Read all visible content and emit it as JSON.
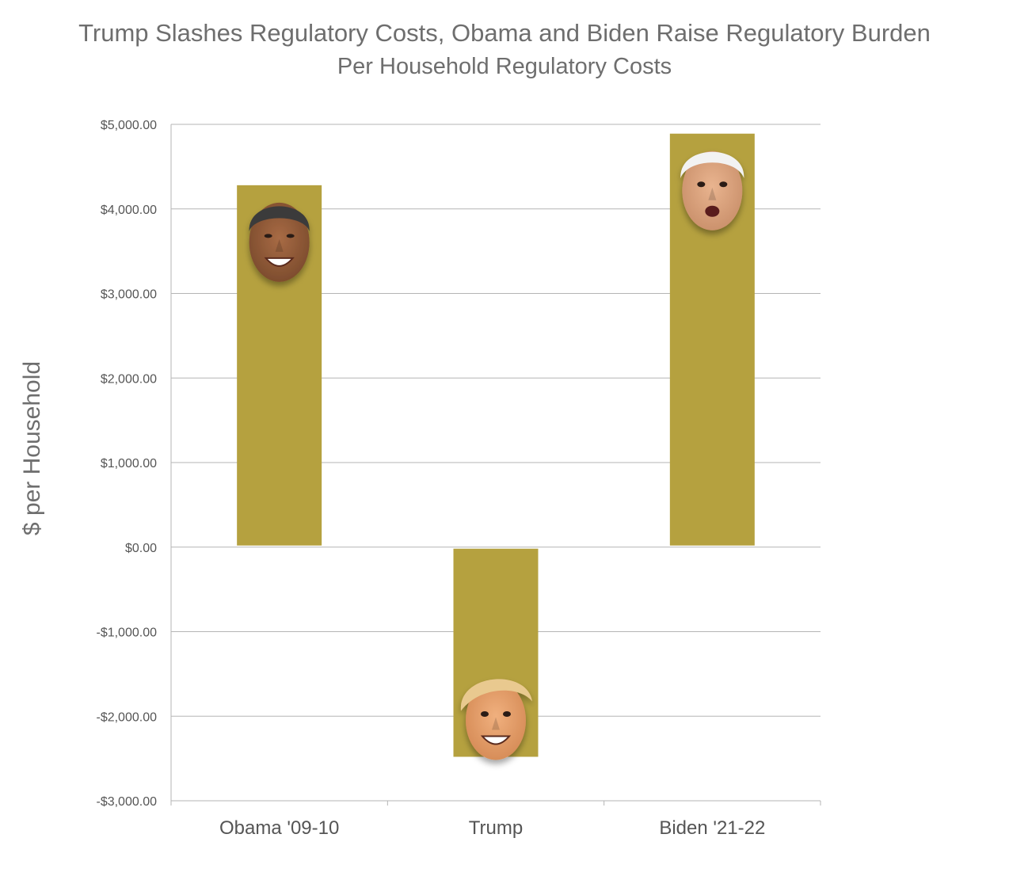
{
  "chart_data": {
    "type": "bar",
    "title": "Trump Slashes Regulatory Costs, Obama and Biden Raise Regulatory Burden",
    "subtitle": "Per Household Regulatory Costs",
    "ylabel": "$ per Household",
    "xlabel": "",
    "categories": [
      "Obama '09-10",
      "Trump",
      "Biden '21-22"
    ],
    "values": [
      4280,
      -2480,
      4890
    ],
    "ylim": [
      -3000,
      5000
    ],
    "yticks": [
      5000,
      4000,
      3000,
      2000,
      1000,
      0,
      -1000,
      -2000,
      -3000
    ],
    "ytick_labels": [
      "$5,000.00",
      "$4,000.00",
      "$3,000.00",
      "$2,000.00",
      "$1,000.00",
      "$0.00",
      "-$1,000.00",
      "-$2,000.00",
      "-$3,000.00"
    ],
    "grid": true,
    "legend": "none",
    "bar_color": "#b5a13f",
    "grid_color": "#b5b5b5",
    "bar_icons": [
      "face-photo-obama-icon",
      "face-photo-trump-icon",
      "face-photo-biden-icon"
    ]
  }
}
